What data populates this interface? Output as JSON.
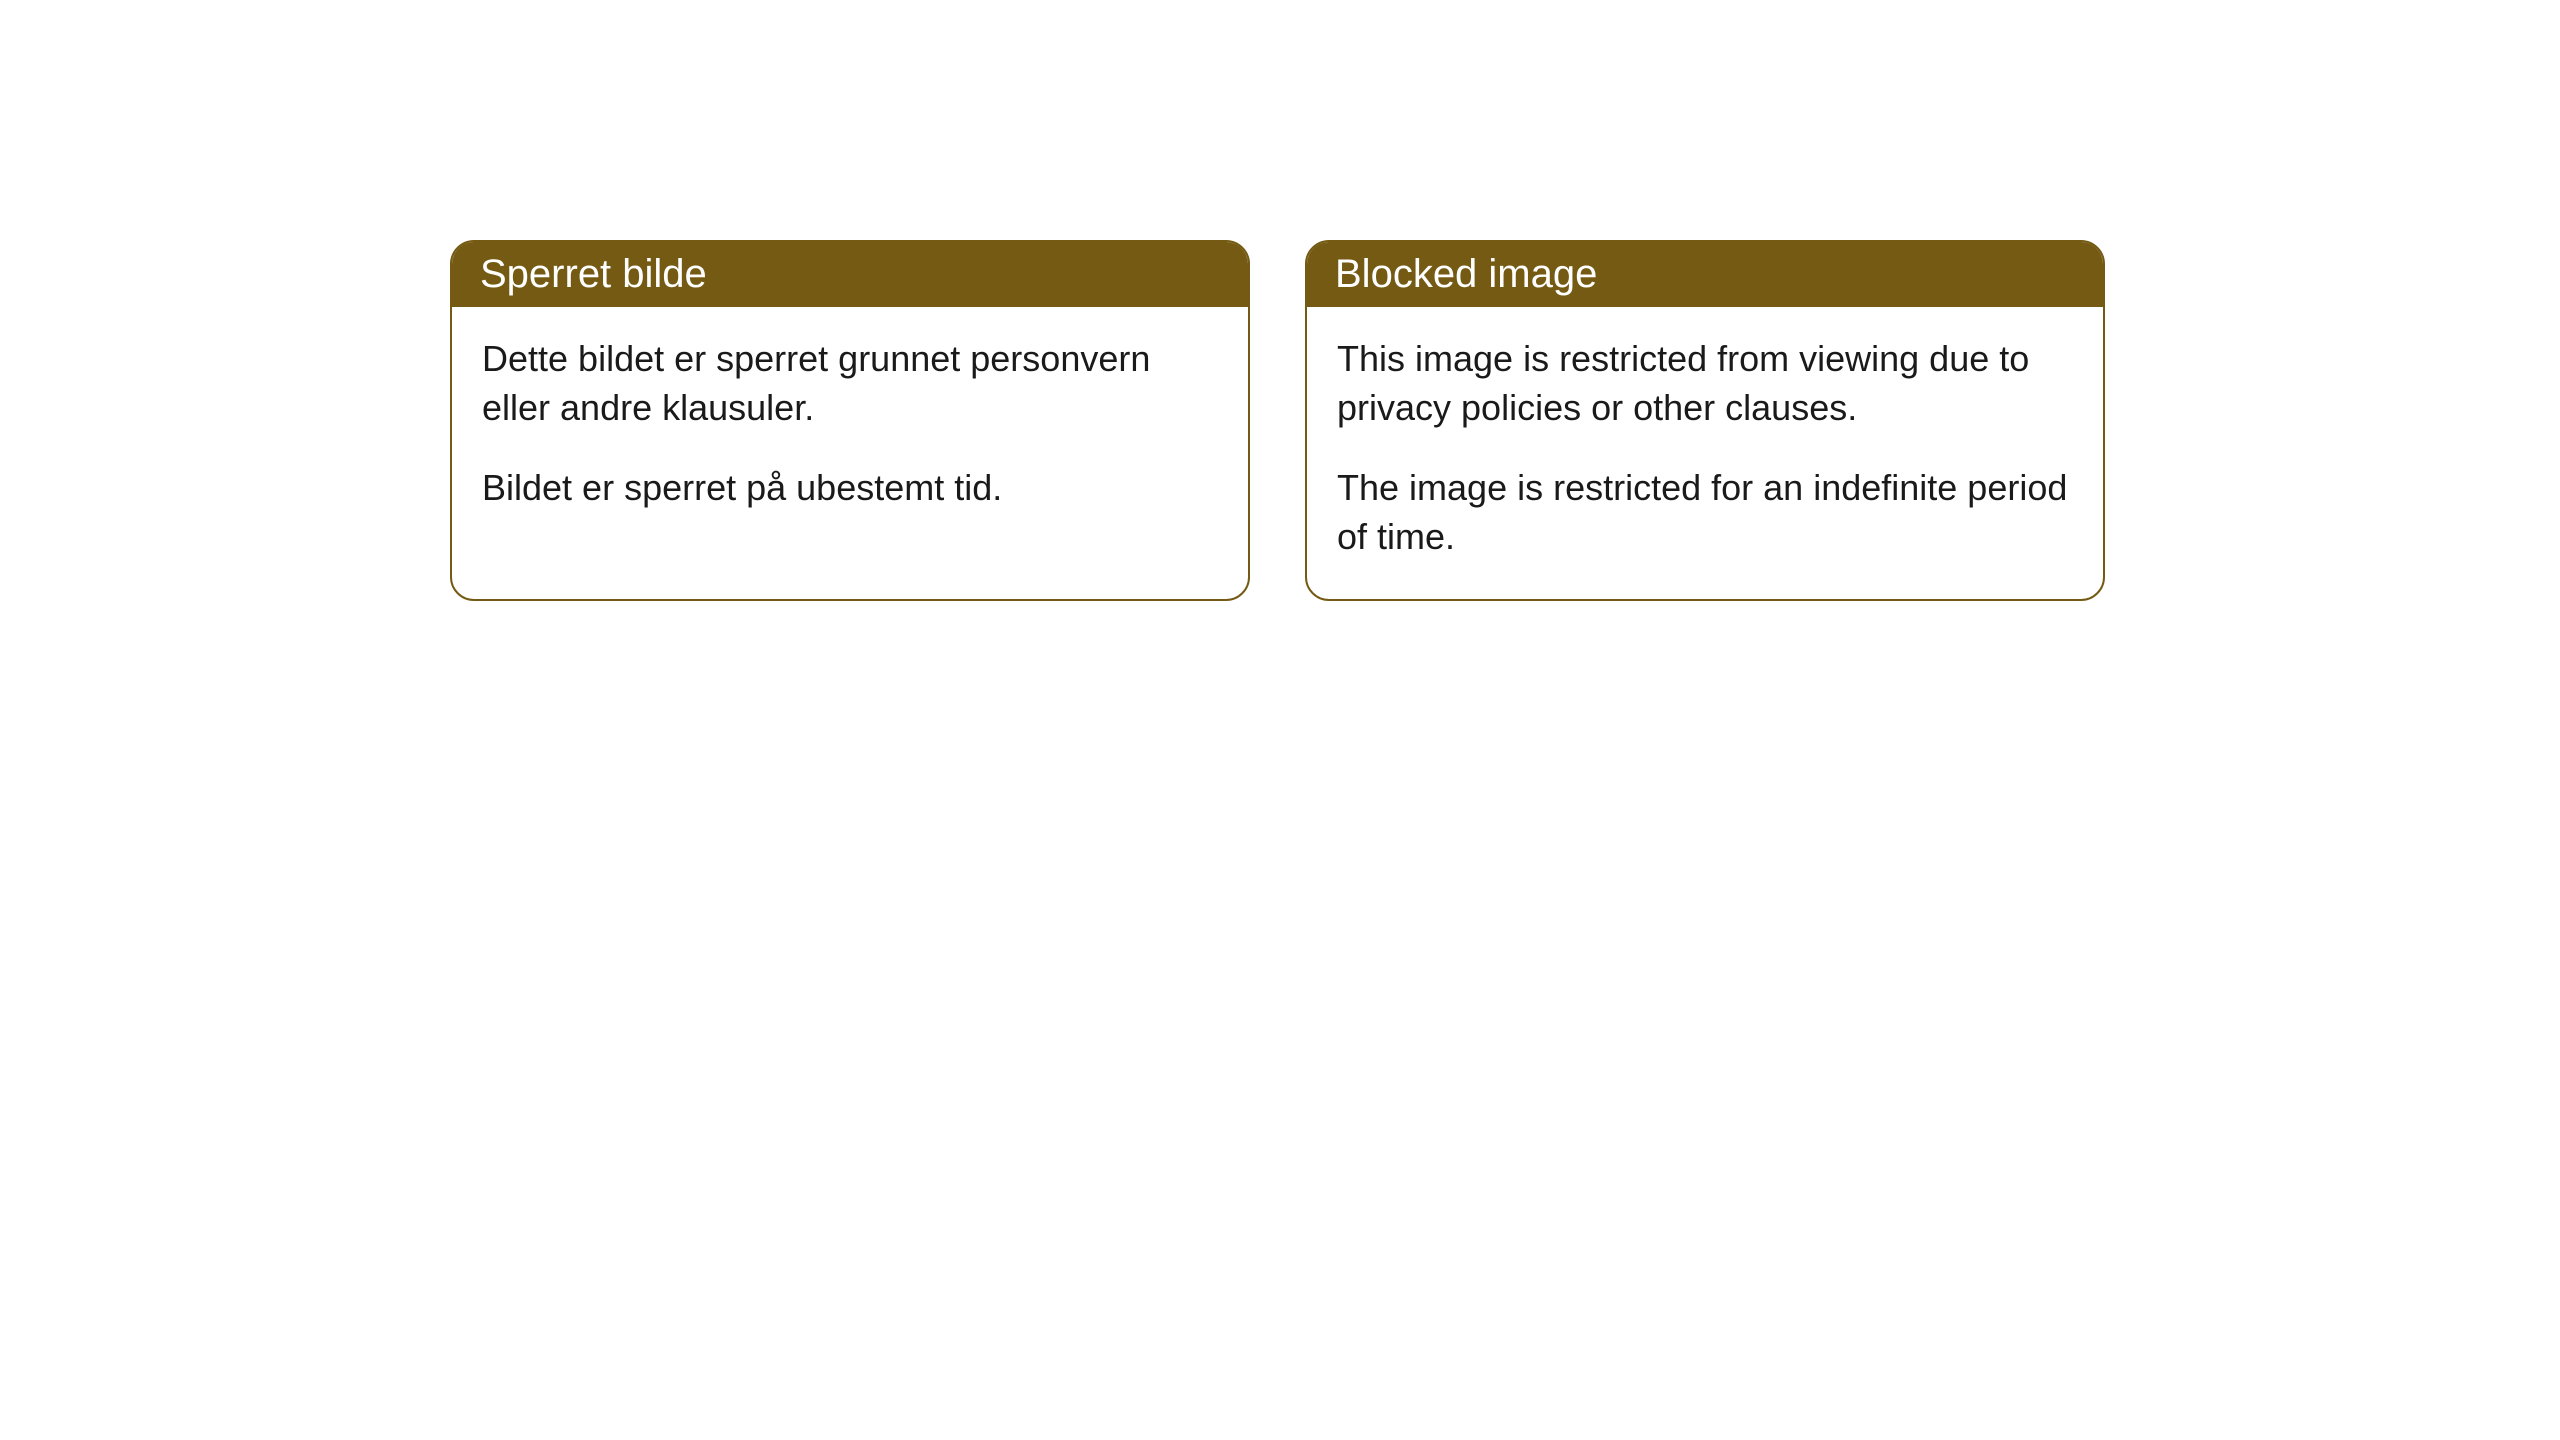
{
  "cards": [
    {
      "title": "Sperret bilde",
      "paragraph1": "Dette bildet er sperret grunnet personvern eller andre klausuler.",
      "paragraph2": "Bildet er sperret på ubestemt tid."
    },
    {
      "title": "Blocked image",
      "paragraph1": "This image is restricted from viewing due to privacy policies or other clauses.",
      "paragraph2": "The image is restricted for an indefinite period of time."
    }
  ],
  "styling": {
    "header_bg": "#745a12",
    "header_text_color": "#ffffff",
    "border_color": "#745a12",
    "body_text_color": "#1a1a1a",
    "card_bg": "#ffffff",
    "border_radius": 24,
    "title_fontsize": 40,
    "body_fontsize": 36
  }
}
